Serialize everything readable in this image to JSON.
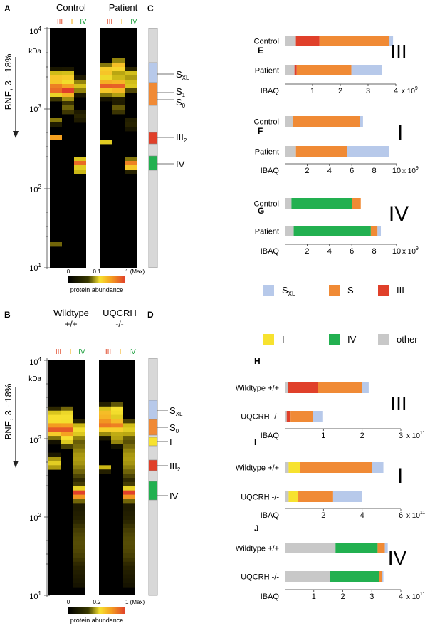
{
  "colors": {
    "sxl": "#b7c9ea",
    "s": "#f08a35",
    "iii": "#e0402a",
    "i": "#f7e22f",
    "iv": "#22b050",
    "other": "#c8c8c8",
    "iii_text": "#e04a2a",
    "i_text": "#f0a800",
    "iv_text": "#20a040"
  },
  "panels": {
    "A": {
      "letter": "A",
      "groups": [
        "Control",
        "Patient"
      ],
      "lane_labels": [
        "III",
        "I",
        "IV"
      ],
      "axis_title": "BNE, 3 - 18%",
      "axis_unit": "kDa",
      "y_ticks": [
        {
          "base": "10",
          "exp": "4"
        },
        {
          "base": "10",
          "exp": "3"
        },
        {
          "base": "10",
          "exp": "2"
        },
        {
          "base": "10",
          "exp": "1"
        }
      ],
      "scale_ticks": [
        "0",
        "0.1",
        "1 (Max)"
      ],
      "scale_label": "protein abundance"
    },
    "B": {
      "letter": "B",
      "groups": [
        "Wildtype",
        "UQCRH"
      ],
      "group_sub": [
        "+/+",
        "-/-"
      ],
      "lane_labels": [
        "III",
        "I",
        "IV"
      ],
      "axis_title": "BNE, 3 - 18%",
      "axis_unit": "kDa",
      "y_ticks": [
        {
          "base": "10",
          "exp": "4"
        },
        {
          "base": "10",
          "exp": "3"
        },
        {
          "base": "10",
          "exp": "2"
        },
        {
          "base": "10",
          "exp": "1"
        }
      ],
      "scale_ticks": [
        "0",
        "0.2",
        "1 (Max)"
      ],
      "scale_label": "protein abundance"
    },
    "C": {
      "letter": "C",
      "bands": [
        {
          "key": "sxl",
          "label": "S",
          "sub": "XL"
        },
        {
          "key": "s",
          "label": "S",
          "sub": "1"
        },
        {
          "key": "s",
          "label": "S",
          "sub": "0"
        },
        {
          "key": "iii",
          "label": "III",
          "sub": "2"
        },
        {
          "key": "iv",
          "label": "IV",
          "sub": ""
        }
      ]
    },
    "D": {
      "letter": "D",
      "bands": [
        {
          "key": "sxl",
          "label": "S",
          "sub": "XL"
        },
        {
          "key": "s",
          "label": "S",
          "sub": "0"
        },
        {
          "key": "i",
          "label": "I",
          "sub": ""
        },
        {
          "key": "iii",
          "label": "III",
          "sub": "2"
        },
        {
          "key": "iv",
          "label": "IV",
          "sub": ""
        }
      ]
    }
  },
  "legend": [
    {
      "key": "sxl",
      "label": "S",
      "sub": "XL"
    },
    {
      "key": "s",
      "label": "S",
      "sub": ""
    },
    {
      "key": "iii",
      "label": "III",
      "sub": ""
    },
    {
      "key": "i",
      "label": "I",
      "sub": ""
    },
    {
      "key": "iv",
      "label": "IV",
      "sub": ""
    },
    {
      "key": "other",
      "label": "other",
      "sub": ""
    }
  ],
  "chart_data": [
    {
      "type": "bar",
      "stacked": true,
      "orientation": "horizontal",
      "panel": "E",
      "complex": "III",
      "categories": [
        "Control",
        "Patient"
      ],
      "xlabel": "IBAQ",
      "xlim": [
        0,
        4
      ],
      "ticks": [
        "1",
        "2",
        "3",
        "4"
      ],
      "multiplier": {
        "base": "x 10",
        "exp": "9"
      },
      "series": [
        {
          "key": "other",
          "values": [
            0.4,
            0.35
          ]
        },
        {
          "key": "iii",
          "values": [
            0.85,
            0.08
          ]
        },
        {
          "key": "s",
          "values": [
            2.5,
            1.97
          ]
        },
        {
          "key": "sxl",
          "values": [
            0.15,
            1.1
          ]
        }
      ]
    },
    {
      "type": "bar",
      "stacked": true,
      "orientation": "horizontal",
      "panel": "F",
      "complex": "I",
      "categories": [
        "Control",
        "Patient"
      ],
      "xlabel": "IBAQ",
      "xlim": [
        0,
        10
      ],
      "ticks": [
        "2",
        "4",
        "6",
        "8",
        "10"
      ],
      "multiplier": {
        "base": "x 10",
        "exp": "9"
      },
      "series": [
        {
          "key": "other",
          "values": [
            0.7,
            1.0
          ]
        },
        {
          "key": "s",
          "values": [
            6.0,
            4.6
          ]
        },
        {
          "key": "sxl",
          "values": [
            0.3,
            3.7
          ]
        }
      ]
    },
    {
      "type": "bar",
      "stacked": true,
      "orientation": "horizontal",
      "panel": "G",
      "complex": "IV",
      "categories": [
        "Control",
        "Patient"
      ],
      "xlabel": "IBAQ",
      "xlim": [
        0,
        10
      ],
      "ticks": [
        "2",
        "4",
        "6",
        "8",
        "10"
      ],
      "multiplier": {
        "base": "x 10",
        "exp": "9"
      },
      "series": [
        {
          "key": "other",
          "values": [
            0.6,
            0.8
          ]
        },
        {
          "key": "iv",
          "values": [
            5.4,
            6.9
          ]
        },
        {
          "key": "s",
          "values": [
            0.8,
            0.6
          ]
        },
        {
          "key": "sxl",
          "values": [
            0.0,
            0.3
          ]
        }
      ]
    },
    {
      "type": "bar",
      "stacked": true,
      "orientation": "horizontal",
      "panel": "H",
      "complex": "III",
      "categories": [
        "Wildtype +/+",
        "UQCRH -/-"
      ],
      "xlabel": "IBAQ",
      "xlim": [
        0,
        3
      ],
      "ticks": [
        "1",
        "2",
        "3"
      ],
      "multiplier": {
        "base": "x 10",
        "exp": "11"
      },
      "series": [
        {
          "key": "other",
          "values": [
            0.08,
            0.05
          ]
        },
        {
          "key": "iii",
          "values": [
            0.78,
            0.1
          ]
        },
        {
          "key": "s",
          "values": [
            1.14,
            0.57
          ]
        },
        {
          "key": "sxl",
          "values": [
            0.17,
            0.27
          ]
        }
      ]
    },
    {
      "type": "bar",
      "stacked": true,
      "orientation": "horizontal",
      "panel": "I",
      "complex": "I",
      "categories": [
        "Wildtype +/+",
        "UQCRH -/-"
      ],
      "xlabel": "IBAQ",
      "xlim": [
        0,
        6
      ],
      "ticks": [
        "2",
        "4",
        "6"
      ],
      "multiplier": {
        "base": "x 10",
        "exp": "11"
      },
      "series": [
        {
          "key": "other",
          "values": [
            0.2,
            0.2
          ]
        },
        {
          "key": "i",
          "values": [
            0.6,
            0.5
          ]
        },
        {
          "key": "s",
          "values": [
            3.7,
            1.8
          ]
        },
        {
          "key": "sxl",
          "values": [
            0.6,
            1.5
          ]
        }
      ]
    },
    {
      "type": "bar",
      "stacked": true,
      "orientation": "horizontal",
      "panel": "J",
      "complex": "IV",
      "categories": [
        "Wildtype +/+",
        "UQCRH -/-"
      ],
      "xlabel": "IBAQ",
      "xlim": [
        0,
        4
      ],
      "ticks": [
        "1",
        "2",
        "3",
        "4"
      ],
      "multiplier": {
        "base": "x 10",
        "exp": "11"
      },
      "series": [
        {
          "key": "other",
          "values": [
            1.75,
            1.55
          ]
        },
        {
          "key": "iv",
          "values": [
            1.45,
            1.7
          ]
        },
        {
          "key": "s",
          "values": [
            0.25,
            0.1
          ]
        },
        {
          "key": "sxl",
          "values": [
            0.1,
            0.05
          ]
        }
      ]
    }
  ]
}
